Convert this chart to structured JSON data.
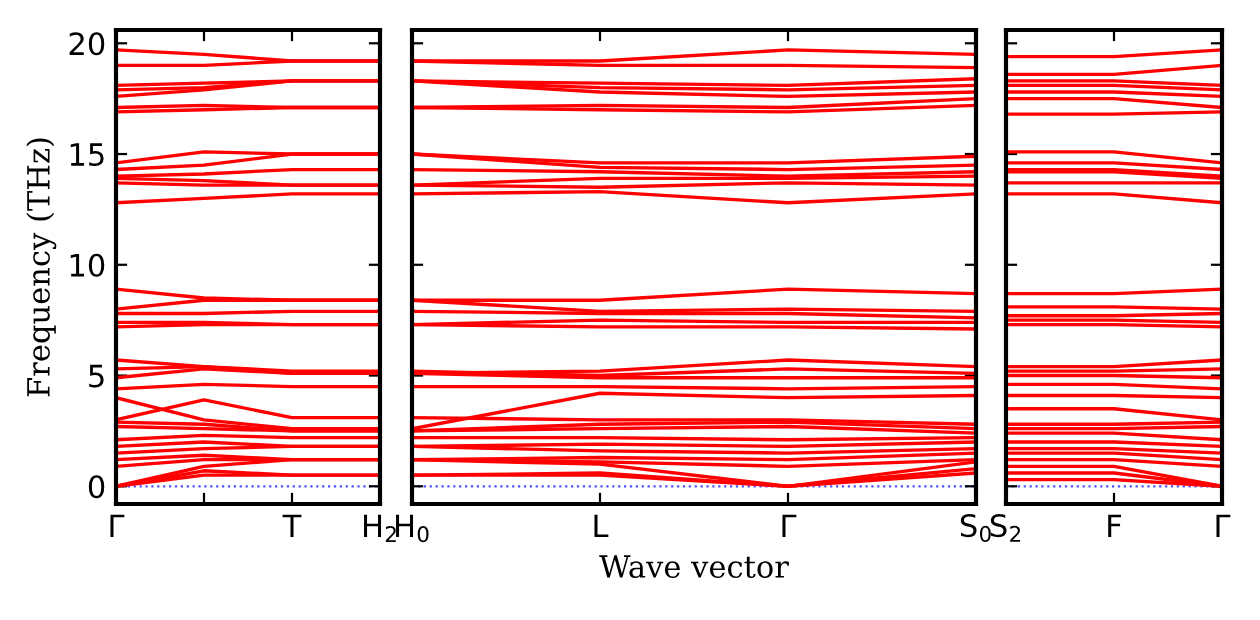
{
  "chart_data": [
    {
      "type": "line",
      "ylabel": "Frequency (THz)",
      "categories": [
        "Γ",
        null,
        "T",
        "H$_{2}$"
      ],
      "ylim": [
        -0.8,
        20.6
      ],
      "yticks": [
        0,
        5,
        10,
        15,
        20
      ],
      "marker": "none",
      "line_style": "solid",
      "grid": false,
      "ref_lines": [
        {
          "axis": "y",
          "value": 0,
          "color": "#5050ff",
          "line_style": "dotted"
        }
      ],
      "series": [
        {
          "color": "#ff0000",
          "values": [
            19.7,
            19.5,
            19.2,
            19.2
          ]
        },
        {
          "color": "#ff0000",
          "values": [
            19.0,
            19.0,
            19.2,
            19.2
          ]
        },
        {
          "color": "#ff0000",
          "values": [
            18.1,
            18.2,
            18.3,
            18.3
          ]
        },
        {
          "color": "#ff0000",
          "values": [
            17.9,
            18.0,
            18.3,
            18.3
          ]
        },
        {
          "color": "#ff0000",
          "values": [
            17.6,
            17.9,
            18.3,
            18.3
          ]
        },
        {
          "color": "#ff0000",
          "values": [
            17.1,
            17.2,
            17.1,
            17.1
          ]
        },
        {
          "color": "#ff0000",
          "values": [
            16.9,
            17.0,
            17.1,
            17.1
          ]
        },
        {
          "color": "#ff0000",
          "values": [
            14.6,
            15.1,
            15.0,
            15.0
          ]
        },
        {
          "color": "#ff0000",
          "values": [
            14.3,
            14.5,
            15.0,
            15.0
          ]
        },
        {
          "color": "#ff0000",
          "values": [
            14.0,
            14.1,
            14.3,
            14.3
          ]
        },
        {
          "color": "#ff0000",
          "values": [
            13.9,
            13.8,
            13.6,
            13.6
          ]
        },
        {
          "color": "#ff0000",
          "values": [
            13.7,
            13.6,
            13.6,
            13.6
          ]
        },
        {
          "color": "#ff0000",
          "values": [
            12.8,
            13.0,
            13.2,
            13.2
          ]
        },
        {
          "color": "#ff0000",
          "values": [
            8.9,
            8.5,
            8.4,
            8.4
          ]
        },
        {
          "color": "#ff0000",
          "values": [
            8.0,
            8.4,
            8.4,
            8.4
          ]
        },
        {
          "color": "#ff0000",
          "values": [
            7.8,
            7.8,
            7.9,
            7.9
          ]
        },
        {
          "color": "#ff0000",
          "values": [
            7.4,
            7.4,
            7.3,
            7.3
          ]
        },
        {
          "color": "#ff0000",
          "values": [
            7.2,
            7.3,
            7.3,
            7.3
          ]
        },
        {
          "color": "#ff0000",
          "values": [
            5.7,
            5.4,
            5.1,
            5.1
          ]
        },
        {
          "color": "#ff0000",
          "values": [
            5.3,
            5.4,
            5.2,
            5.2
          ]
        },
        {
          "color": "#ff0000",
          "values": [
            4.9,
            5.3,
            5.1,
            5.1
          ]
        },
        {
          "color": "#ff0000",
          "values": [
            4.4,
            4.6,
            4.5,
            4.5
          ]
        },
        {
          "color": "#ff0000",
          "values": [
            4.0,
            3.0,
            2.6,
            2.6
          ]
        },
        {
          "color": "#ff0000",
          "values": [
            3.0,
            3.9,
            3.1,
            3.1
          ]
        },
        {
          "color": "#ff0000",
          "values": [
            2.9,
            2.8,
            2.5,
            2.5
          ]
        },
        {
          "color": "#ff0000",
          "values": [
            2.7,
            2.6,
            2.5,
            2.5
          ]
        },
        {
          "color": "#ff0000",
          "values": [
            2.1,
            2.3,
            2.2,
            2.2
          ]
        },
        {
          "color": "#ff0000",
          "values": [
            1.8,
            2.0,
            1.8,
            1.8
          ]
        },
        {
          "color": "#ff0000",
          "values": [
            1.5,
            1.7,
            1.8,
            1.8
          ]
        },
        {
          "color": "#ff0000",
          "values": [
            1.2,
            1.4,
            1.2,
            1.2
          ]
        },
        {
          "color": "#ff0000",
          "values": [
            0.9,
            1.2,
            1.2,
            1.2
          ]
        },
        {
          "color": "#ff0000",
          "values": [
            0,
            0.9,
            1.2,
            1.2
          ]
        },
        {
          "color": "#ff0000",
          "values": [
            0,
            0.5,
            0.5,
            0.5
          ]
        },
        {
          "color": "#ff0000",
          "values": [
            0,
            0.7,
            0.5,
            0.5
          ]
        }
      ]
    },
    {
      "type": "line",
      "xlabel": "Wave vector",
      "categories": [
        "H$_{0}$",
        "L",
        "Γ",
        "S$_{0}$"
      ],
      "ylim": [
        -0.8,
        20.6
      ],
      "yticks": [
        0,
        5,
        10,
        15,
        20
      ],
      "tick_labels": "x",
      "marker": "none",
      "line_style": "solid",
      "grid": false,
      "ref_lines": [
        {
          "axis": "y",
          "value": 0,
          "color": "#5050ff",
          "line_style": "dotted"
        }
      ],
      "series": [
        {
          "color": "#ff0000",
          "values": [
            19.2,
            19.2,
            19.7,
            19.5
          ]
        },
        {
          "color": "#ff0000",
          "values": [
            19.2,
            19.0,
            19.0,
            18.9
          ]
        },
        {
          "color": "#ff0000",
          "values": [
            18.3,
            18.2,
            18.1,
            18.4
          ]
        },
        {
          "color": "#ff0000",
          "values": [
            18.3,
            18.0,
            17.9,
            18.1
          ]
        },
        {
          "color": "#ff0000",
          "values": [
            18.3,
            17.8,
            17.6,
            17.8
          ]
        },
        {
          "color": "#ff0000",
          "values": [
            17.1,
            17.2,
            17.1,
            17.5
          ]
        },
        {
          "color": "#ff0000",
          "values": [
            17.1,
            17.0,
            16.9,
            17.2
          ]
        },
        {
          "color": "#ff0000",
          "values": [
            15.0,
            14.6,
            14.6,
            14.9
          ]
        },
        {
          "color": "#ff0000",
          "values": [
            15.0,
            14.4,
            14.3,
            14.5
          ]
        },
        {
          "color": "#ff0000",
          "values": [
            14.3,
            14.2,
            14.0,
            14.2
          ]
        },
        {
          "color": "#ff0000",
          "values": [
            13.6,
            13.9,
            13.9,
            14.0
          ]
        },
        {
          "color": "#ff0000",
          "values": [
            13.6,
            13.5,
            13.7,
            13.6
          ]
        },
        {
          "color": "#ff0000",
          "values": [
            13.2,
            13.3,
            12.8,
            13.2
          ]
        },
        {
          "color": "#ff0000",
          "values": [
            8.4,
            8.4,
            8.9,
            8.7
          ]
        },
        {
          "color": "#ff0000",
          "values": [
            8.4,
            7.9,
            8.0,
            7.9
          ]
        },
        {
          "color": "#ff0000",
          "values": [
            7.9,
            7.8,
            7.8,
            7.6
          ]
        },
        {
          "color": "#ff0000",
          "values": [
            7.3,
            7.5,
            7.4,
            7.4
          ]
        },
        {
          "color": "#ff0000",
          "values": [
            7.3,
            7.2,
            7.2,
            7.1
          ]
        },
        {
          "color": "#ff0000",
          "values": [
            5.1,
            5.2,
            5.7,
            5.4
          ]
        },
        {
          "color": "#ff0000",
          "values": [
            5.2,
            5.0,
            5.3,
            5.1
          ]
        },
        {
          "color": "#ff0000",
          "values": [
            5.1,
            4.9,
            4.9,
            4.9
          ]
        },
        {
          "color": "#ff0000",
          "values": [
            4.5,
            4.5,
            4.4,
            4.5
          ]
        },
        {
          "color": "#ff0000",
          "values": [
            2.6,
            4.2,
            4.0,
            4.1
          ]
        },
        {
          "color": "#ff0000",
          "values": [
            3.1,
            3.0,
            3.0,
            2.8
          ]
        },
        {
          "color": "#ff0000",
          "values": [
            2.5,
            2.8,
            2.9,
            2.6
          ]
        },
        {
          "color": "#ff0000",
          "values": [
            2.5,
            2.6,
            2.7,
            2.4
          ]
        },
        {
          "color": "#ff0000",
          "values": [
            2.2,
            2.2,
            2.1,
            2.2
          ]
        },
        {
          "color": "#ff0000",
          "values": [
            1.8,
            1.9,
            1.8,
            2.0
          ]
        },
        {
          "color": "#ff0000",
          "values": [
            1.8,
            1.6,
            1.5,
            1.7
          ]
        },
        {
          "color": "#ff0000",
          "values": [
            1.2,
            1.3,
            1.2,
            1.5
          ]
        },
        {
          "color": "#ff0000",
          "values": [
            1.2,
            1.1,
            0.9,
            1.2
          ]
        },
        {
          "color": "#ff0000",
          "values": [
            1.2,
            1.0,
            0,
            1.1
          ]
        },
        {
          "color": "#ff0000",
          "values": [
            0.5,
            0.6,
            0,
            0.8
          ]
        },
        {
          "color": "#ff0000",
          "values": [
            0.5,
            0.5,
            0,
            0.6
          ]
        }
      ]
    },
    {
      "type": "line",
      "categories": [
        "S$_{2}$",
        "F",
        "Γ"
      ],
      "ylim": [
        -0.8,
        20.6
      ],
      "yticks": [
        0,
        5,
        10,
        15,
        20
      ],
      "tick_labels": "x",
      "marker": "none",
      "line_style": "solid",
      "grid": false,
      "ref_lines": [
        {
          "axis": "y",
          "value": 0,
          "color": "#5050ff",
          "line_style": "dotted"
        }
      ],
      "series": [
        {
          "color": "#ff0000",
          "values": [
            19.4,
            19.4,
            19.7
          ]
        },
        {
          "color": "#ff0000",
          "values": [
            18.6,
            18.6,
            19.0
          ]
        },
        {
          "color": "#ff0000",
          "values": [
            18.3,
            18.3,
            18.1
          ]
        },
        {
          "color": "#ff0000",
          "values": [
            18.1,
            18.1,
            17.9
          ]
        },
        {
          "color": "#ff0000",
          "values": [
            17.8,
            17.8,
            17.6
          ]
        },
        {
          "color": "#ff0000",
          "values": [
            17.5,
            17.5,
            17.1
          ]
        },
        {
          "color": "#ff0000",
          "values": [
            16.8,
            16.8,
            16.9
          ]
        },
        {
          "color": "#ff0000",
          "values": [
            15.1,
            15.1,
            14.6
          ]
        },
        {
          "color": "#ff0000",
          "values": [
            14.6,
            14.6,
            14.3
          ]
        },
        {
          "color": "#ff0000",
          "values": [
            14.3,
            14.3,
            14.0
          ]
        },
        {
          "color": "#ff0000",
          "values": [
            14.2,
            14.2,
            13.9
          ]
        },
        {
          "color": "#ff0000",
          "values": [
            13.7,
            13.7,
            13.7
          ]
        },
        {
          "color": "#ff0000",
          "values": [
            13.2,
            13.2,
            12.8
          ]
        },
        {
          "color": "#ff0000",
          "values": [
            8.7,
            8.7,
            8.9
          ]
        },
        {
          "color": "#ff0000",
          "values": [
            8.1,
            8.1,
            8.0
          ]
        },
        {
          "color": "#ff0000",
          "values": [
            7.7,
            7.7,
            7.8
          ]
        },
        {
          "color": "#ff0000",
          "values": [
            7.5,
            7.5,
            7.4
          ]
        },
        {
          "color": "#ff0000",
          "values": [
            7.3,
            7.3,
            7.2
          ]
        },
        {
          "color": "#ff0000",
          "values": [
            5.4,
            5.4,
            5.7
          ]
        },
        {
          "color": "#ff0000",
          "values": [
            5.2,
            5.2,
            5.3
          ]
        },
        {
          "color": "#ff0000",
          "values": [
            5.0,
            5.0,
            4.9
          ]
        },
        {
          "color": "#ff0000",
          "values": [
            4.6,
            4.6,
            4.4
          ]
        },
        {
          "color": "#ff0000",
          "values": [
            4.1,
            4.1,
            4.0
          ]
        },
        {
          "color": "#ff0000",
          "values": [
            3.5,
            3.5,
            3.0
          ]
        },
        {
          "color": "#ff0000",
          "values": [
            2.8,
            2.8,
            2.9
          ]
        },
        {
          "color": "#ff0000",
          "values": [
            2.6,
            2.6,
            2.7
          ]
        },
        {
          "color": "#ff0000",
          "values": [
            2.4,
            2.4,
            2.1
          ]
        },
        {
          "color": "#ff0000",
          "values": [
            2.0,
            2.0,
            1.8
          ]
        },
        {
          "color": "#ff0000",
          "values": [
            1.7,
            1.7,
            1.5
          ]
        },
        {
          "color": "#ff0000",
          "values": [
            1.5,
            1.5,
            1.2
          ]
        },
        {
          "color": "#ff0000",
          "values": [
            1.2,
            1.2,
            0.9
          ]
        },
        {
          "color": "#ff0000",
          "values": [
            0.9,
            0.9,
            0
          ]
        },
        {
          "color": "#ff0000",
          "values": [
            0.6,
            0.6,
            0
          ]
        },
        {
          "color": "#ff0000",
          "values": [
            0.3,
            0.3,
            0
          ]
        }
      ]
    }
  ]
}
